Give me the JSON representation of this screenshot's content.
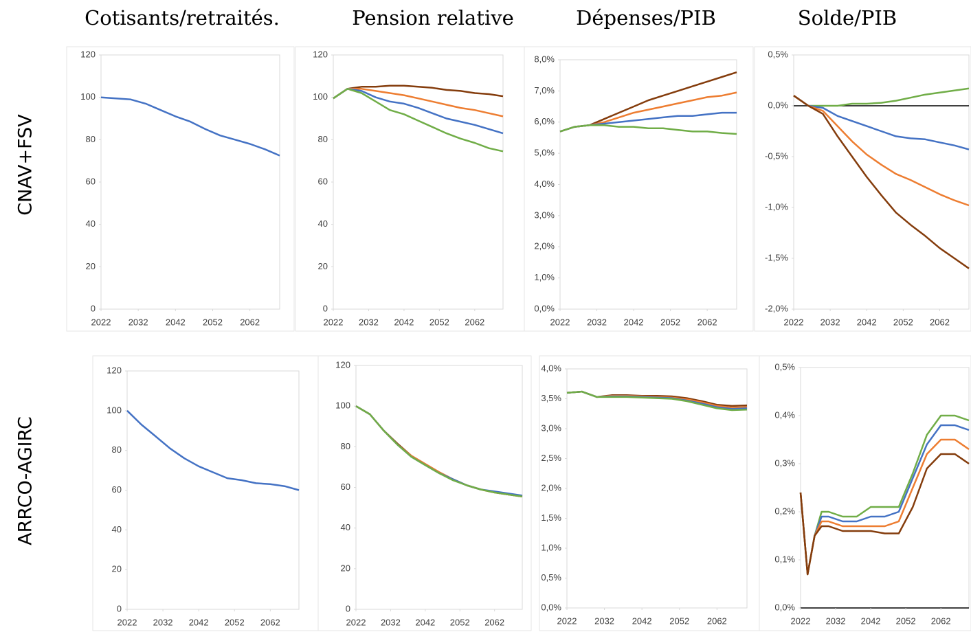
{
  "column_titles": [
    "Cotisants/retraités.",
    "Pension relative",
    "Dépenses/PIB",
    "Solde/PIB"
  ],
  "row_labels": [
    "CNAV+FSV",
    "ARRCO-AGIRC"
  ],
  "chart_data": [
    {
      "type": "line",
      "x": [
        2022,
        2026,
        2030,
        2034,
        2038,
        2042,
        2046,
        2050,
        2054,
        2058,
        2062,
        2066,
        2070
      ],
      "xlim": [
        2022,
        2070
      ],
      "xticks": [
        2022,
        2032,
        2042,
        2052,
        2062
      ],
      "ylim": [
        0,
        120
      ],
      "yticks": [
        0,
        20,
        40,
        60,
        80,
        100,
        120
      ],
      "series": [
        {
          "color": "#4472c4",
          "values": [
            100,
            99.5,
            99,
            97,
            94,
            91,
            88.5,
            85,
            82,
            80,
            78,
            75.5,
            72.5
          ]
        }
      ]
    },
    {
      "type": "line",
      "x": [
        2022,
        2026,
        2030,
        2034,
        2038,
        2042,
        2046,
        2050,
        2054,
        2058,
        2062,
        2066,
        2070
      ],
      "xlim": [
        2022,
        2070
      ],
      "xticks": [
        2022,
        2032,
        2042,
        2052,
        2062
      ],
      "ylim": [
        0,
        120
      ],
      "yticks": [
        0,
        20,
        40,
        60,
        80,
        100,
        120
      ],
      "series": [
        {
          "color": "#843c0c",
          "values": [
            99.5,
            104,
            105,
            105,
            105.5,
            105.5,
            105,
            104.5,
            103.5,
            103,
            102,
            101.5,
            100.5
          ]
        },
        {
          "color": "#ed7d31",
          "values": [
            99.5,
            104,
            104,
            103,
            102,
            101,
            99.5,
            98,
            96.5,
            95,
            94,
            92.5,
            91
          ]
        },
        {
          "color": "#4472c4",
          "values": [
            99.5,
            104,
            103,
            100,
            98,
            97,
            95,
            92.5,
            90,
            88.5,
            87,
            85,
            83
          ]
        },
        {
          "color": "#70ad47",
          "values": [
            99.5,
            104,
            102,
            98,
            94,
            92,
            89,
            86,
            83,
            80.5,
            78.5,
            76,
            74.5
          ]
        }
      ]
    },
    {
      "type": "line",
      "x": [
        2022,
        2026,
        2030,
        2034,
        2038,
        2042,
        2046,
        2050,
        2054,
        2058,
        2062,
        2066,
        2070
      ],
      "xlim": [
        2022,
        2070
      ],
      "xticks": [
        2022,
        2032,
        2042,
        2052,
        2062
      ],
      "ylim": [
        0,
        8
      ],
      "yticks": [
        {
          "value": 0,
          "label": "0,0%"
        },
        {
          "value": 1,
          "label": "1,0%"
        },
        {
          "value": 2,
          "label": "2,0%"
        },
        {
          "value": 3,
          "label": "3,0%"
        },
        {
          "value": 4,
          "label": "4,0%"
        },
        {
          "value": 5,
          "label": "5,0%"
        },
        {
          "value": 6,
          "label": "6,0%"
        },
        {
          "value": 7,
          "label": "7,0%"
        },
        {
          "value": 8,
          "label": "8,0%"
        }
      ],
      "series": [
        {
          "color": "#843c0c",
          "values": [
            5.7,
            5.85,
            5.9,
            6.1,
            6.3,
            6.5,
            6.7,
            6.85,
            7.0,
            7.15,
            7.3,
            7.45,
            7.6
          ]
        },
        {
          "color": "#ed7d31",
          "values": [
            5.7,
            5.85,
            5.9,
            6.0,
            6.15,
            6.3,
            6.4,
            6.5,
            6.6,
            6.7,
            6.8,
            6.85,
            6.95
          ]
        },
        {
          "color": "#4472c4",
          "values": [
            5.7,
            5.85,
            5.9,
            5.95,
            6.0,
            6.05,
            6.1,
            6.15,
            6.2,
            6.2,
            6.25,
            6.3,
            6.3
          ]
        },
        {
          "color": "#70ad47",
          "values": [
            5.7,
            5.85,
            5.9,
            5.9,
            5.85,
            5.85,
            5.8,
            5.8,
            5.75,
            5.7,
            5.7,
            5.65,
            5.62
          ]
        }
      ]
    },
    {
      "type": "line",
      "x": [
        2022,
        2026,
        2030,
        2034,
        2038,
        2042,
        2046,
        2050,
        2054,
        2058,
        2062,
        2066,
        2070
      ],
      "xlim": [
        2022,
        2070
      ],
      "xticks": [
        2022,
        2032,
        2042,
        2052,
        2062
      ],
      "ylim": [
        -2,
        0.5
      ],
      "zero_line": true,
      "yticks": [
        {
          "value": -2,
          "label": "-2,0%"
        },
        {
          "value": -1.5,
          "label": "-1,5%"
        },
        {
          "value": -1,
          "label": "-1,0%"
        },
        {
          "value": -0.5,
          "label": "-0,5%"
        },
        {
          "value": 0,
          "label": "0,0%"
        },
        {
          "value": 0.5,
          "label": "0,5%"
        }
      ],
      "series": [
        {
          "color": "#70ad47",
          "values": [
            0.1,
            0,
            0,
            0,
            0.02,
            0.02,
            0.03,
            0.05,
            0.08,
            0.11,
            0.13,
            0.15,
            0.17
          ]
        },
        {
          "color": "#4472c4",
          "values": [
            0.1,
            0,
            -0.02,
            -0.1,
            -0.15,
            -0.2,
            -0.25,
            -0.3,
            -0.32,
            -0.33,
            -0.36,
            -0.39,
            -0.43
          ]
        },
        {
          "color": "#ed7d31",
          "values": [
            0.1,
            0,
            -0.05,
            -0.2,
            -0.35,
            -0.48,
            -0.58,
            -0.67,
            -0.73,
            -0.8,
            -0.87,
            -0.93,
            -0.98
          ]
        },
        {
          "color": "#843c0c",
          "values": [
            0.1,
            0,
            -0.08,
            -0.3,
            -0.5,
            -0.7,
            -0.88,
            -1.05,
            -1.17,
            -1.28,
            -1.4,
            -1.5,
            -1.6
          ]
        }
      ]
    },
    {
      "type": "line",
      "x": [
        2022,
        2026,
        2030,
        2034,
        2038,
        2042,
        2046,
        2050,
        2054,
        2058,
        2062,
        2066,
        2070
      ],
      "xlim": [
        2022,
        2070
      ],
      "xticks": [
        2022,
        2032,
        2042,
        2052,
        2062
      ],
      "ylim": [
        0,
        120
      ],
      "yticks": [
        0,
        20,
        40,
        60,
        80,
        100,
        120
      ],
      "series": [
        {
          "color": "#4472c4",
          "values": [
            100,
            93,
            87,
            81,
            76,
            72,
            69,
            66,
            65,
            63.5,
            63,
            62,
            60
          ]
        }
      ]
    },
    {
      "type": "line",
      "x": [
        2022,
        2026,
        2030,
        2034,
        2038,
        2042,
        2046,
        2050,
        2054,
        2058,
        2062,
        2066,
        2070
      ],
      "xlim": [
        2022,
        2070
      ],
      "xticks": [
        2022,
        2032,
        2042,
        2052,
        2062
      ],
      "ylim": [
        0,
        120
      ],
      "yticks": [
        0,
        20,
        40,
        60,
        80,
        100,
        120
      ],
      "series": [
        {
          "color": "#843c0c",
          "values": [
            100,
            96,
            88,
            81.5,
            75.5,
            71.5,
            67.5,
            64,
            61,
            59,
            57.5,
            56.5,
            55.5
          ]
        },
        {
          "color": "#ed7d31",
          "values": [
            100,
            96,
            88,
            81,
            75.5,
            71.5,
            67.5,
            64,
            61,
            59,
            57.5,
            56.5,
            55.5
          ]
        },
        {
          "color": "#4472c4",
          "values": [
            100,
            96,
            88,
            81,
            75,
            71,
            67,
            64,
            61,
            59,
            58,
            57,
            56
          ]
        },
        {
          "color": "#70ad47",
          "values": [
            100,
            96,
            88,
            81,
            75,
            71,
            67,
            63.5,
            61,
            59,
            57.5,
            56.5,
            55.5
          ]
        }
      ]
    },
    {
      "type": "line",
      "x": [
        2022,
        2026,
        2030,
        2034,
        2038,
        2042,
        2046,
        2050,
        2054,
        2058,
        2062,
        2066,
        2070
      ],
      "xlim": [
        2022,
        2070
      ],
      "xticks": [
        2022,
        2032,
        2042,
        2052,
        2062
      ],
      "ylim": [
        0,
        4
      ],
      "yticks": [
        {
          "value": 0,
          "label": "0,0%"
        },
        {
          "value": 0.5,
          "label": "0,5%"
        },
        {
          "value": 1,
          "label": "1,0%"
        },
        {
          "value": 1.5,
          "label": "1,5%"
        },
        {
          "value": 2,
          "label": "2,0%"
        },
        {
          "value": 2.5,
          "label": "2,5%"
        },
        {
          "value": 3,
          "label": "3,0%"
        },
        {
          "value": 3.5,
          "label": "3,5%"
        },
        {
          "value": 4,
          "label": "4,0%"
        }
      ],
      "series": [
        {
          "color": "#843c0c",
          "values": [
            3.6,
            3.62,
            3.53,
            3.56,
            3.56,
            3.55,
            3.55,
            3.54,
            3.51,
            3.46,
            3.4,
            3.38,
            3.39
          ]
        },
        {
          "color": "#ed7d31",
          "values": [
            3.6,
            3.62,
            3.53,
            3.55,
            3.55,
            3.54,
            3.53,
            3.52,
            3.49,
            3.44,
            3.38,
            3.35,
            3.36
          ]
        },
        {
          "color": "#4472c4",
          "values": [
            3.6,
            3.62,
            3.53,
            3.54,
            3.54,
            3.53,
            3.52,
            3.51,
            3.47,
            3.42,
            3.36,
            3.33,
            3.34
          ]
        },
        {
          "color": "#70ad47",
          "values": [
            3.6,
            3.62,
            3.53,
            3.53,
            3.53,
            3.52,
            3.51,
            3.5,
            3.46,
            3.4,
            3.34,
            3.31,
            3.32
          ]
        }
      ]
    },
    {
      "type": "line",
      "x": [
        2022,
        2024,
        2026,
        2028,
        2030,
        2034,
        2038,
        2042,
        2046,
        2050,
        2054,
        2058,
        2062,
        2066,
        2070
      ],
      "xlim": [
        2022,
        2070
      ],
      "xticks": [
        2022,
        2032,
        2042,
        2052,
        2062
      ],
      "ylim": [
        0,
        0.5
      ],
      "zero_line": true,
      "yticks": [
        {
          "value": 0,
          "label": "0,0%"
        },
        {
          "value": 0.1,
          "label": "0,1%"
        },
        {
          "value": 0.2,
          "label": "0,2%"
        },
        {
          "value": 0.3,
          "label": "0,3%"
        },
        {
          "value": 0.4,
          "label": "0,4%"
        },
        {
          "value": 0.5,
          "label": "0,5%"
        }
      ],
      "series": [
        {
          "color": "#70ad47",
          "values": [
            0.24,
            0.07,
            0.15,
            0.2,
            0.2,
            0.19,
            0.19,
            0.21,
            0.21,
            0.21,
            0.28,
            0.36,
            0.4,
            0.4,
            0.39
          ]
        },
        {
          "color": "#4472c4",
          "values": [
            0.24,
            0.07,
            0.15,
            0.19,
            0.19,
            0.18,
            0.18,
            0.19,
            0.19,
            0.2,
            0.27,
            0.34,
            0.38,
            0.38,
            0.37
          ]
        },
        {
          "color": "#ed7d31",
          "values": [
            0.24,
            0.07,
            0.15,
            0.18,
            0.18,
            0.17,
            0.17,
            0.17,
            0.17,
            0.18,
            0.25,
            0.32,
            0.35,
            0.35,
            0.33
          ]
        },
        {
          "color": "#843c0c",
          "values": [
            0.24,
            0.07,
            0.15,
            0.17,
            0.17,
            0.16,
            0.16,
            0.16,
            0.155,
            0.155,
            0.21,
            0.29,
            0.32,
            0.32,
            0.3
          ]
        }
      ]
    }
  ]
}
